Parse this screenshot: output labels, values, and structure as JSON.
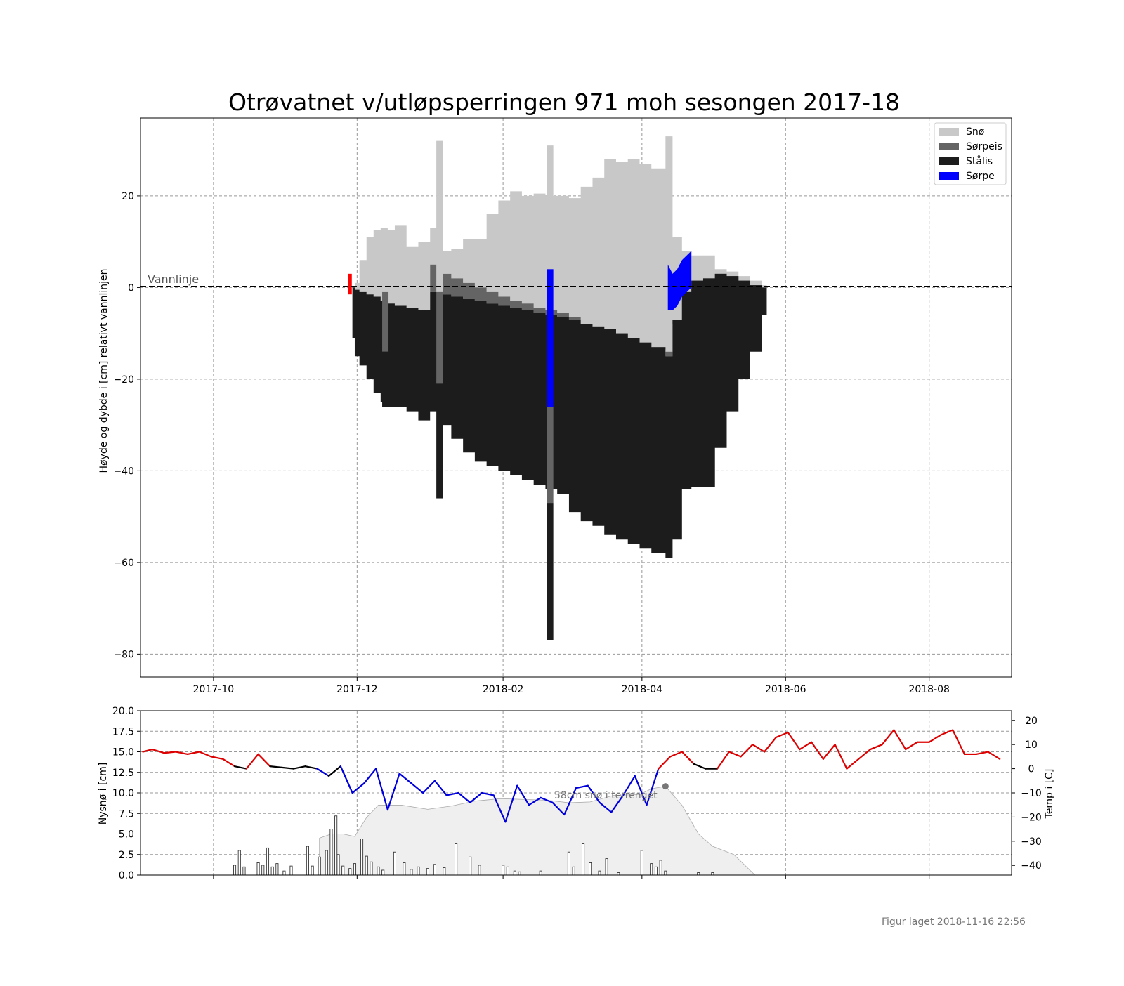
{
  "chart_data": [
    {
      "type": "bar",
      "title": "Otrøvatnet v/utløpsperringen 971 moh sesongen 2017-18",
      "ylabel": "Høyde og dybde i [cm] relativt vannlinjen",
      "xlabel": "",
      "ylim": [
        -85,
        37
      ],
      "xlim": [
        "2017-08-31",
        "2018-09-05"
      ],
      "grid": true,
      "x_ticks": [
        "2017-10",
        "2017-12",
        "2018-02",
        "2018-04",
        "2018-06",
        "2018-08"
      ],
      "y_ticks": [
        20,
        0,
        -20,
        -40,
        -60,
        -80
      ],
      "waterline_label": "Vannlinje",
      "legend_position": "top-right",
      "legend": [
        {
          "label": "Snø",
          "color": "#c8c8c8"
        },
        {
          "label": "Sørpeis",
          "color": "#646464"
        },
        {
          "label": "Stålis",
          "color": "#1c1c1c"
        },
        {
          "label": "Sørpe",
          "color": "#0000ff"
        }
      ],
      "profile": {
        "dates": [
          "2017-11-29",
          "2017-11-30",
          "2017-12-02",
          "2017-12-05",
          "2017-12-08",
          "2017-12-11",
          "2017-12-14",
          "2017-12-17",
          "2017-12-22",
          "2017-12-27",
          "2018-01-01",
          "2018-01-05",
          "2018-01-10",
          "2018-01-15",
          "2018-01-20",
          "2018-01-25",
          "2018-01-30",
          "2018-02-04",
          "2018-02-09",
          "2018-02-14",
          "2018-02-19",
          "2018-02-24",
          "2018-03-01",
          "2018-03-06",
          "2018-03-11",
          "2018-03-16",
          "2018-03-21",
          "2018-03-26",
          "2018-03-31",
          "2018-04-05",
          "2018-04-11",
          "2018-04-14",
          "2018-04-18",
          "2018-04-22",
          "2018-04-27",
          "2018-05-02",
          "2018-05-07",
          "2018-05-12",
          "2018-05-17",
          "2018-05-22",
          "2018-05-24"
        ],
        "snow_top": [
          0,
          1,
          6,
          11,
          12.5,
          13,
          12.5,
          13.5,
          9,
          10,
          13,
          8,
          8.5,
          10.5,
          10.5,
          16,
          19,
          21,
          20,
          20.5,
          20,
          20,
          19.5,
          22,
          24,
          28,
          27.5,
          28,
          27,
          26,
          33,
          11,
          8,
          7,
          7,
          4,
          3.5,
          2.5,
          1.5,
          0.5,
          0
        ],
        "slush_top": [
          0,
          -0.5,
          -1,
          -1.5,
          -2,
          -3,
          -3.5,
          -4,
          -4.5,
          -5,
          5,
          3,
          2,
          1,
          0,
          -1,
          -2,
          -3,
          -3.5,
          -4.5,
          -5,
          -5.5,
          -6.5,
          -8,
          -9.5,
          -10.5,
          -11,
          -12,
          -13,
          -13.5,
          -14,
          -8,
          -7,
          -6,
          -5,
          -4,
          -3,
          -2,
          -1,
          -0.5,
          0
        ],
        "ice_top": [
          0,
          -0.5,
          -1,
          -1.5,
          -2,
          -3,
          -3.5,
          -4,
          -4.5,
          -5,
          -1,
          -1.5,
          -2,
          -2.5,
          -3,
          -3.5,
          -4,
          -4.5,
          -5,
          -5.5,
          -6,
          -6.5,
          -7,
          -8,
          -8.5,
          -9,
          -10,
          -11,
          -12,
          -13,
          -15,
          -7,
          -1,
          1.5,
          2,
          3,
          2.5,
          1.5,
          0.5,
          0,
          0
        ],
        "ice_bottom": [
          -11,
          -15,
          -17,
          -20,
          -23,
          -25,
          -26,
          -26,
          -27,
          -29,
          -27,
          -30,
          -33,
          -36,
          -38,
          -39,
          -40,
          -41,
          -42,
          -43,
          -44,
          -45,
          -49,
          -51,
          -52,
          -54,
          -55,
          -56,
          -57,
          -58,
          -59,
          -55,
          -44,
          -43.5,
          -43.5,
          -35,
          -27,
          -20,
          -14,
          -6,
          0
        ]
      },
      "cores": [
        {
          "date": "2017-12-13",
          "snow": [
            0,
            10
          ],
          "slush_ice": [
            -14,
            -1
          ],
          "ice": [
            -26,
            -14
          ]
        },
        {
          "date": "2018-01-05",
          "snow": [
            -1,
            32
          ],
          "slush_ice": [
            -21,
            -1
          ],
          "ice": [
            -46,
            -21
          ]
        },
        {
          "date": "2018-02-21",
          "snow": [
            4,
            31
          ],
          "slush": [
            -26,
            4
          ],
          "slush_ice": [
            -47,
            -26
          ],
          "ice": [
            -77,
            -47
          ]
        }
      ],
      "slush_patch": {
        "x": [
          "2018-04-12",
          "2018-04-14",
          "2018-04-16",
          "2018-04-18",
          "2018-04-20",
          "2018-04-22"
        ],
        "top": [
          5,
          3,
          4,
          6,
          7,
          8
        ],
        "bottom": [
          -5,
          -5,
          -4,
          -2,
          -1,
          0
        ]
      },
      "waterline_marker": {
        "date": "2017-11-28",
        "range": [
          -1.5,
          3
        ],
        "color": "#ff0000"
      }
    },
    {
      "type": "line",
      "xlim": [
        "2017-08-31",
        "2018-09-05"
      ],
      "ylabel": "Nysnø i [cm]",
      "ylabel_right": "Temp i [C]",
      "ylim": [
        0,
        20
      ],
      "ylim_right": [
        -44,
        24
      ],
      "y_ticks": [
        "20.0",
        "17.5",
        "15.0",
        "12.5",
        "10.0",
        "7.5",
        "5.0",
        "2.5",
        "0.0"
      ],
      "y_ticks_right": [
        "20",
        "10",
        "0",
        "−10",
        "−20",
        "−30",
        "−40"
      ],
      "grid": true,
      "annotation": "58cm snø i terrenget",
      "annotation_point": {
        "date": "2018-04-11",
        "value": 10.8
      },
      "snow_depth_terrain": {
        "dates": [
          "2017-11-15",
          "2017-11-20",
          "2017-11-25",
          "2017-11-30",
          "2017-12-05",
          "2017-12-10",
          "2017-12-20",
          "2017-12-31",
          "2018-01-10",
          "2018-01-20",
          "2018-01-31",
          "2018-02-10",
          "2018-02-20",
          "2018-03-01",
          "2018-03-10",
          "2018-03-20",
          "2018-03-31",
          "2018-04-05",
          "2018-04-11",
          "2018-04-18",
          "2018-04-25",
          "2018-05-01",
          "2018-05-10",
          "2018-05-19"
        ],
        "values": [
          4.5,
          5,
          5,
          4.7,
          7,
          8.5,
          8.5,
          8,
          8.4,
          9,
          9.3,
          9.2,
          9.1,
          8.8,
          8.9,
          9.7,
          9.8,
          10.5,
          10.8,
          8.5,
          5,
          3.5,
          2.5,
          0
        ]
      },
      "new_snow_bars": {
        "dates": [
          "2017-10-10",
          "2017-10-12",
          "2017-10-14",
          "2017-10-20",
          "2017-10-22",
          "2017-10-24",
          "2017-10-26",
          "2017-10-28",
          "2017-10-31",
          "2017-11-03",
          "2017-11-10",
          "2017-11-12",
          "2017-11-15",
          "2017-11-18",
          "2017-11-20",
          "2017-11-22",
          "2017-11-23",
          "2017-11-25",
          "2017-11-28",
          "2017-11-30",
          "2017-12-03",
          "2017-12-05",
          "2017-12-07",
          "2017-12-10",
          "2017-12-12",
          "2017-12-17",
          "2017-12-21",
          "2017-12-24",
          "2017-12-27",
          "2017-12-31",
          "2018-01-03",
          "2018-01-07",
          "2018-01-12",
          "2018-01-18",
          "2018-01-22",
          "2018-02-01",
          "2018-02-03",
          "2018-02-06",
          "2018-02-08",
          "2018-02-17",
          "2018-03-01",
          "2018-03-03",
          "2018-03-07",
          "2018-03-10",
          "2018-03-14",
          "2018-03-17",
          "2018-03-22",
          "2018-04-01",
          "2018-04-05",
          "2018-04-07",
          "2018-04-09",
          "2018-04-11",
          "2018-04-25",
          "2018-05-01"
        ],
        "values": [
          1.2,
          3,
          1,
          1.5,
          1.2,
          3.3,
          1,
          1.4,
          0.5,
          1.1,
          3.5,
          1.1,
          2.2,
          3,
          5.6,
          7.2,
          2.5,
          1.1,
          0.8,
          1.4,
          4.4,
          2.3,
          1.6,
          1,
          0.6,
          2.8,
          1.5,
          0.7,
          1,
          0.8,
          1.3,
          0.9,
          3.8,
          2.2,
          1.2,
          1.2,
          1,
          0.5,
          0.4,
          0.5,
          2.8,
          1,
          3.8,
          1.5,
          0.5,
          2,
          0.3,
          3,
          1.4,
          1,
          1.8,
          0.5,
          0.3,
          0.3
        ]
      },
      "temperature": {
        "dates": [
          "2017-09-01",
          "2017-09-05",
          "2017-09-10",
          "2017-09-15",
          "2017-09-20",
          "2017-09-25",
          "2017-09-30",
          "2017-10-05",
          "2017-10-10",
          "2017-10-15",
          "2017-10-20",
          "2017-10-25",
          "2017-10-30",
          "2017-11-04",
          "2017-11-09",
          "2017-11-14",
          "2017-11-19",
          "2017-11-24",
          "2017-11-29",
          "2017-12-04",
          "2017-12-09",
          "2017-12-14",
          "2017-12-19",
          "2017-12-24",
          "2017-12-29",
          "2018-01-03",
          "2018-01-08",
          "2018-01-13",
          "2018-01-18",
          "2018-01-23",
          "2018-01-28",
          "2018-02-02",
          "2018-02-07",
          "2018-02-12",
          "2018-02-17",
          "2018-02-22",
          "2018-02-27",
          "2018-03-04",
          "2018-03-09",
          "2018-03-14",
          "2018-03-19",
          "2018-03-24",
          "2018-03-29",
          "2018-04-03",
          "2018-04-08",
          "2018-04-13",
          "2018-04-18",
          "2018-04-23",
          "2018-04-28",
          "2018-05-03",
          "2018-05-08",
          "2018-05-13",
          "2018-05-18",
          "2018-05-23",
          "2018-05-28",
          "2018-06-02",
          "2018-06-07",
          "2018-06-12",
          "2018-06-17",
          "2018-06-22",
          "2018-06-27",
          "2018-07-02",
          "2018-07-07",
          "2018-07-12",
          "2018-07-17",
          "2018-07-22",
          "2018-07-27",
          "2018-08-01",
          "2018-08-06",
          "2018-08-11",
          "2018-08-16",
          "2018-08-21",
          "2018-08-26",
          "2018-08-31"
        ],
        "values": [
          7,
          8,
          6.5,
          7,
          6,
          7,
          5,
          4,
          1,
          0,
          6,
          1,
          0.5,
          0,
          1,
          0,
          -3,
          1,
          -10,
          -6,
          0,
          -17,
          -2,
          -6,
          -10,
          -5,
          -11,
          -10,
          -14,
          -10,
          -11,
          -22,
          -7,
          -15,
          -12,
          -14,
          -19,
          -8,
          -7,
          -14,
          -18,
          -11,
          -3,
          -15,
          0,
          5,
          7,
          2,
          0,
          0,
          7,
          5,
          10,
          7,
          13,
          15,
          8,
          11,
          4,
          10,
          0,
          4,
          8,
          10,
          16,
          8,
          11,
          11,
          14,
          16,
          6,
          6,
          7,
          4
        ],
        "colors": {
          "warm": "#dd0000",
          "cold": "#0000dd",
          "near_zero": "#000000"
        }
      },
      "colors": {
        "terrain": "#efefef",
        "terrain_edge": "#aaaaaa",
        "bars": "#ffffff",
        "bar_edge": "#333333",
        "annotation_dot": "#777777"
      }
    }
  ],
  "footer": "Figur laget 2018-11-16 22:56"
}
